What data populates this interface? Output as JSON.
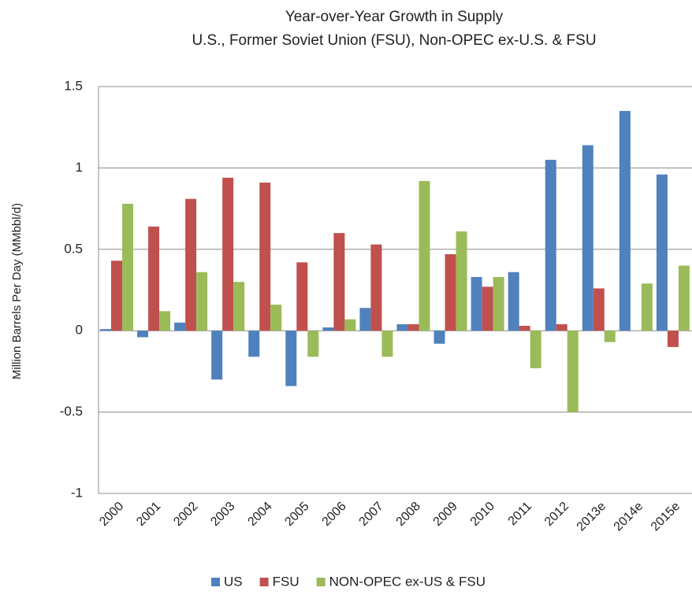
{
  "chart_data": {
    "type": "bar",
    "title": "Year-over-Year Growth in Supply",
    "subtitle": "U.S., Former Soviet Union (FSU), Non-OPEC ex-U.S. & FSU",
    "y_label": "Million Barrels Per Day (MMbbl/d)",
    "categories": [
      "2000",
      "2001",
      "2002",
      "2003",
      "2004",
      "2005",
      "2006",
      "2007",
      "2008",
      "2009",
      "2010",
      "2011",
      "2012",
      "2013e",
      "2014e",
      "2015e"
    ],
    "series": [
      {
        "name": "US",
        "color": "#4f81bd",
        "values": [
          0.01,
          -0.04,
          0.05,
          -0.3,
          -0.16,
          -0.34,
          0.02,
          0.14,
          0.04,
          -0.08,
          0.33,
          0.36,
          1.05,
          1.14,
          1.35,
          0.96
        ]
      },
      {
        "name": "FSU",
        "color": "#c0504d",
        "values": [
          0.43,
          0.64,
          0.81,
          0.94,
          0.91,
          0.42,
          0.6,
          0.53,
          0.04,
          0.47,
          0.27,
          0.03,
          0.04,
          0.26,
          0,
          -0.1
        ]
      },
      {
        "name": "NON-OPEC ex-US & FSU",
        "color": "#9bbb59",
        "values": [
          0.78,
          0.12,
          0.36,
          0.3,
          0.16,
          -0.16,
          0.07,
          -0.16,
          0.92,
          0.61,
          0.33,
          -0.23,
          -0.5,
          -0.07,
          0.29,
          0.4
        ]
      }
    ],
    "ylim": [
      -1,
      1.5
    ],
    "yticks": [
      -1,
      -0.5,
      0,
      0.5,
      1,
      1.5
    ],
    "grid": true,
    "legend": "bottom"
  }
}
